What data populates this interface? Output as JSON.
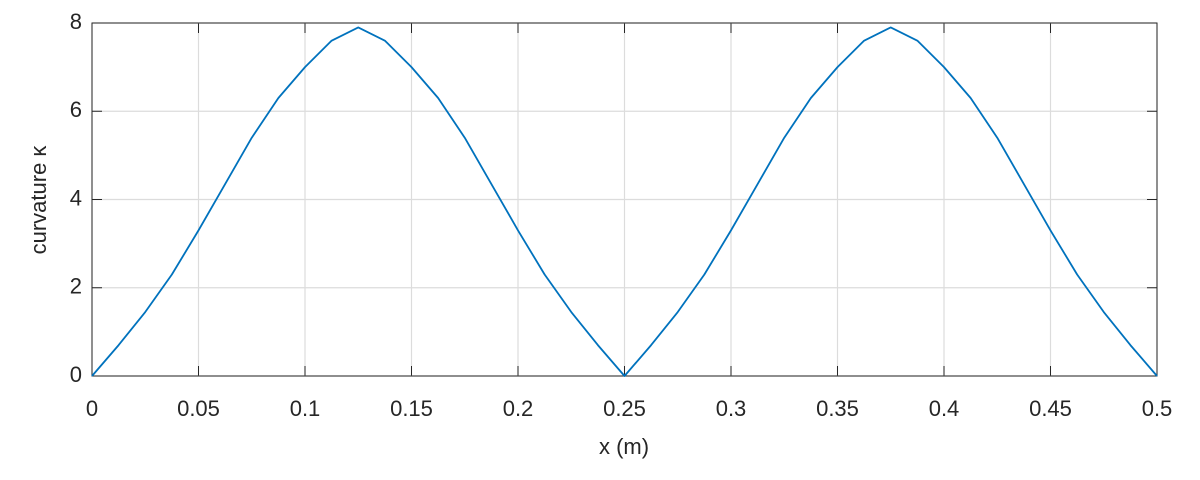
{
  "chart_data": {
    "type": "line",
    "xlabel": "x (m)",
    "ylabel": "curvature κ",
    "x": [
      0,
      0.0125,
      0.025,
      0.0375,
      0.05,
      0.0625,
      0.075,
      0.0875,
      0.1,
      0.1125,
      0.125,
      0.1375,
      0.15,
      0.1625,
      0.175,
      0.1875,
      0.2,
      0.2125,
      0.225,
      0.2375,
      0.25,
      0.2625,
      0.275,
      0.2875,
      0.3,
      0.3125,
      0.325,
      0.3375,
      0.35,
      0.3625,
      0.375,
      0.3875,
      0.4,
      0.4125,
      0.425,
      0.4375,
      0.45,
      0.4625,
      0.475,
      0.4875,
      0.5
    ],
    "values": [
      0,
      0.7,
      1.45,
      2.3,
      3.3,
      4.35,
      5.4,
      6.3,
      7.0,
      7.6,
      7.9,
      7.6,
      7.0,
      6.3,
      5.4,
      4.35,
      3.3,
      2.3,
      1.45,
      0.7,
      0,
      0.7,
      1.45,
      2.3,
      3.3,
      4.35,
      5.4,
      6.3,
      7.0,
      7.6,
      7.9,
      7.6,
      7.0,
      6.3,
      5.4,
      4.35,
      3.3,
      2.3,
      1.45,
      0.7,
      0
    ],
    "color": "#0072bd",
    "xlim": [
      0,
      0.5
    ],
    "xticks": [
      0,
      0.05,
      0.1,
      0.15,
      0.2,
      0.25,
      0.3,
      0.35,
      0.4,
      0.45,
      0.5
    ],
    "ylim": [
      0,
      8
    ],
    "yticks": [
      0,
      2,
      4,
      6,
      8
    ],
    "grid": true
  }
}
